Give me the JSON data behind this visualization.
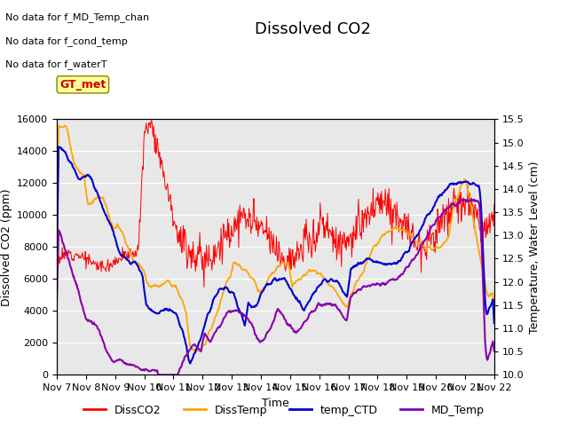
{
  "title": "Dissolved CO2",
  "xlabel": "Time",
  "ylabel_left": "Dissolved CO2 (ppm)",
  "ylabel_right": "Temperature, Water Level (cm)",
  "ylim_left": [
    0,
    16000
  ],
  "ylim_right": [
    10.0,
    15.5
  ],
  "yticks_right": [
    10.0,
    10.5,
    11.0,
    11.5,
    12.0,
    12.5,
    13.0,
    13.5,
    14.0,
    14.5,
    15.0,
    15.5
  ],
  "yticks_left": [
    0,
    2000,
    4000,
    6000,
    8000,
    10000,
    12000,
    14000,
    16000
  ],
  "xtick_labels": [
    "Nov 7",
    "Nov 8",
    "Nov 9",
    "Nov 10",
    "Nov 11",
    "Nov 12",
    "Nov 13",
    "Nov 14",
    "Nov 15",
    "Nov 16",
    "Nov 17",
    "Nov 18",
    "Nov 19",
    "Nov 20",
    "Nov 21",
    "Nov 22"
  ],
  "legend_labels": [
    "DissCO2",
    "DissTemp",
    "temp_CTD",
    "MD_Temp"
  ],
  "legend_colors": [
    "#ff0000",
    "#ffa500",
    "#0000cc",
    "#8800aa"
  ],
  "annotation_texts": [
    "No data for f_MD_Temp_chan",
    "No data for f_cond_temp",
    "No data for f_waterT"
  ],
  "annotation_box_text": "GT_met",
  "annotation_box_color": "#ffff99",
  "annotation_box_textcolor": "#cc0000",
  "background_color": "#e8e8e8",
  "fig_bgcolor": "#ffffff",
  "title_fontsize": 13,
  "axis_label_fontsize": 9,
  "tick_fontsize": 8,
  "legend_fontsize": 9,
  "annotation_fontsize": 8
}
